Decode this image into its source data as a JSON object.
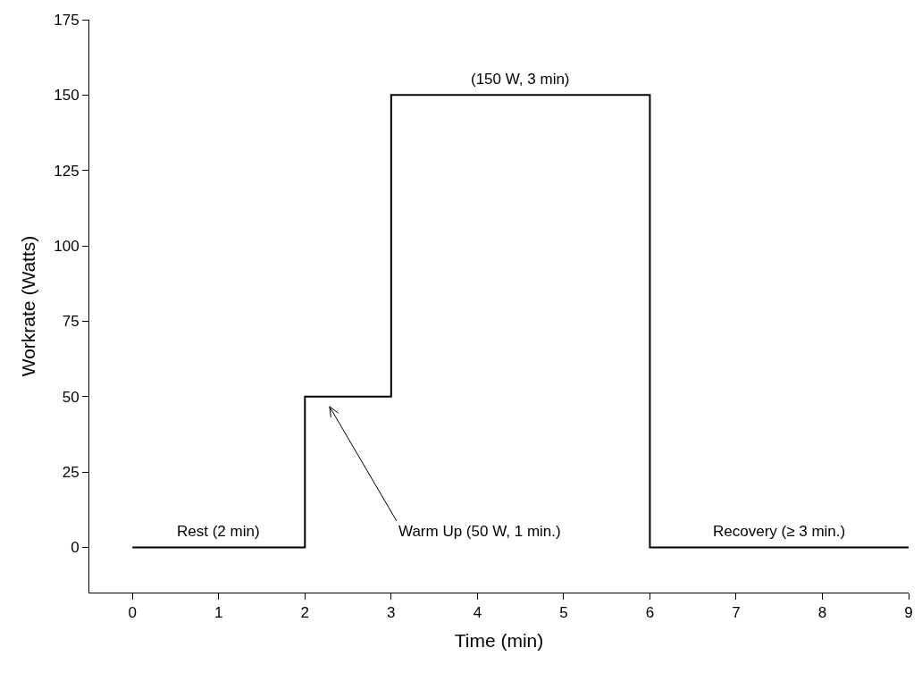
{
  "chart_data": {
    "type": "step",
    "xlabel": "Time (min)",
    "ylabel": "Workrate (Watts)",
    "x": [
      0,
      2,
      3,
      6,
      9
    ],
    "series": [
      {
        "color": "#000000",
        "values": [
          0,
          50,
          150,
          0,
          0
        ]
      }
    ],
    "xlim": [
      -0.5,
      9
    ],
    "xticks": [
      0,
      1,
      2,
      3,
      4,
      5,
      6,
      7,
      8,
      9
    ],
    "ylim": [
      -15,
      175
    ],
    "yticks": [
      0,
      25,
      50,
      75,
      100,
      125,
      150,
      175
    ],
    "grid": false,
    "marker": "none",
    "line_style": "solid",
    "annotations": [
      {
        "text": "Rest (2 min)",
        "x": 1,
        "y": 0
      },
      "Warm Up (50 W, 1 min.)",
      {
        "text": "(150 W, 3 min)",
        "x": 4.5,
        "y": 150
      },
      {
        "text": "Recovery (≥ 3 min.)",
        "x": 7.5,
        "y": 0
      }
    ]
  }
}
